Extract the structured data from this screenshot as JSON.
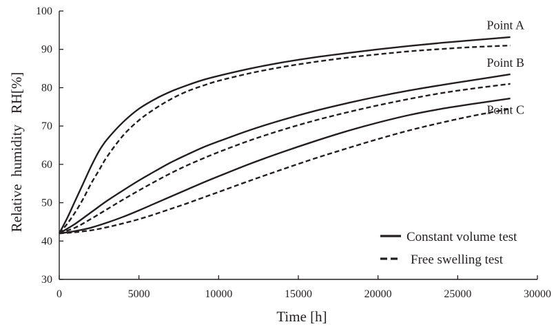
{
  "chart_data": {
    "type": "line",
    "title": "",
    "xlabel": "Time [h]",
    "ylabel": "Relative  humidity   RH[%]",
    "xlim": [
      0,
      30000
    ],
    "ylim": [
      30,
      100
    ],
    "xticks": [
      0,
      5000,
      10000,
      15000,
      20000,
      25000,
      30000
    ],
    "yticks": [
      30,
      40,
      50,
      60,
      70,
      80,
      90,
      100
    ],
    "grid": false,
    "legend_position": "bottom-right",
    "line_color": "#231f20",
    "legend": [
      {
        "label": "Constant volume test",
        "style": "solid"
      },
      {
        "label": "Free swelling test",
        "style": "dashed"
      }
    ],
    "annotations": [
      {
        "text": "Point A",
        "x": 28000,
        "y": 95.2
      },
      {
        "text": "Point B",
        "x": 28000,
        "y": 85.5
      },
      {
        "text": "Point C",
        "x": 28000,
        "y": 73.2
      }
    ],
    "series": [
      {
        "point": "A",
        "test": "constant",
        "x": [
          0,
          500,
          1000,
          1500,
          2000,
          2500,
          3000,
          4000,
          5000,
          6000,
          7000,
          8000,
          9000,
          10000,
          12000,
          14000,
          16000,
          18000,
          20000,
          22000,
          24000,
          26000,
          28300
        ],
        "y": [
          42,
          46,
          50.5,
          55,
          59.5,
          63.5,
          66.5,
          71,
          74.5,
          77,
          79,
          80.6,
          82,
          83.1,
          85,
          86.6,
          87.9,
          89,
          90,
          90.9,
          91.7,
          92.4,
          93.2
        ]
      },
      {
        "point": "A",
        "test": "free",
        "x": [
          0,
          500,
          1000,
          1500,
          2000,
          2500,
          3000,
          4000,
          5000,
          6000,
          7000,
          8000,
          9000,
          10000,
          12000,
          14000,
          16000,
          18000,
          20000,
          22000,
          24000,
          26000,
          28300
        ],
        "y": [
          42,
          44.5,
          47.5,
          51,
          55,
          58.5,
          62,
          67.5,
          71.5,
          74.5,
          77,
          79,
          80.5,
          81.8,
          83.8,
          85.4,
          86.7,
          87.8,
          88.7,
          89.5,
          90.1,
          90.6,
          91
        ]
      },
      {
        "point": "B",
        "test": "constant",
        "x": [
          0,
          1000,
          2000,
          3000,
          4000,
          5000,
          6000,
          7000,
          8000,
          9000,
          10000,
          12000,
          14000,
          16000,
          18000,
          20000,
          22000,
          24000,
          26000,
          28300
        ],
        "y": [
          42,
          44.5,
          47.5,
          50.5,
          53.2,
          55.8,
          58.2,
          60.5,
          62.5,
          64.4,
          66,
          69,
          71.6,
          73.9,
          75.9,
          77.7,
          79.3,
          80.7,
          82,
          83.5
        ]
      },
      {
        "point": "B",
        "test": "free",
        "x": [
          0,
          1000,
          2000,
          3000,
          4000,
          5000,
          6000,
          7000,
          8000,
          9000,
          10000,
          12000,
          14000,
          16000,
          18000,
          20000,
          22000,
          24000,
          26000,
          28300
        ],
        "y": [
          42,
          43.5,
          45.8,
          48.3,
          50.8,
          53.2,
          55.5,
          57.7,
          59.7,
          61.5,
          63.2,
          66.3,
          69,
          71.4,
          73.5,
          75.4,
          77.1,
          78.6,
          79.8,
          81
        ]
      },
      {
        "point": "C",
        "test": "constant",
        "x": [
          0,
          1000,
          2000,
          3000,
          4000,
          5000,
          6000,
          7000,
          8000,
          9000,
          10000,
          12000,
          14000,
          16000,
          18000,
          20000,
          22000,
          24000,
          26000,
          28300
        ],
        "y": [
          42,
          42.6,
          43.5,
          44.8,
          46.3,
          48,
          49.8,
          51.6,
          53.4,
          55.2,
          56.9,
          60.2,
          63.2,
          66,
          68.6,
          70.9,
          72.9,
          74.5,
          75.8,
          77.2
        ]
      },
      {
        "point": "C",
        "test": "free",
        "x": [
          0,
          1000,
          2000,
          3000,
          4000,
          5000,
          6000,
          7000,
          8000,
          9000,
          10000,
          12000,
          14000,
          16000,
          18000,
          20000,
          22000,
          24000,
          26000,
          28300
        ],
        "y": [
          42,
          42.3,
          42.8,
          43.6,
          44.6,
          45.7,
          47,
          48.4,
          49.8,
          51.3,
          52.8,
          55.8,
          58.7,
          61.5,
          64.1,
          66.6,
          68.9,
          70.9,
          72.7,
          74.5
        ]
      }
    ]
  }
}
